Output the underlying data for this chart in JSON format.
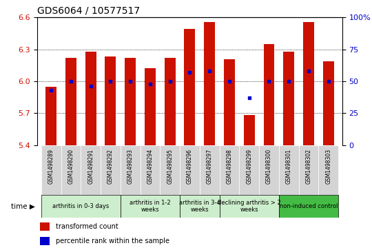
{
  "title": "GDS6064 / 10577517",
  "samples": [
    "GSM1498289",
    "GSM1498290",
    "GSM1498291",
    "GSM1498292",
    "GSM1498293",
    "GSM1498294",
    "GSM1498295",
    "GSM1498296",
    "GSM1498297",
    "GSM1498298",
    "GSM1498299",
    "GSM1498300",
    "GSM1498301",
    "GSM1498302",
    "GSM1498303"
  ],
  "transformed_count": [
    5.95,
    6.22,
    6.28,
    6.23,
    6.22,
    6.12,
    6.22,
    6.49,
    6.56,
    6.21,
    5.68,
    6.35,
    6.28,
    6.56,
    6.19
  ],
  "percentile_rank": [
    43,
    50,
    46,
    50,
    50,
    48,
    50,
    57,
    58,
    50,
    37,
    50,
    50,
    58,
    50
  ],
  "ylim_left": [
    5.4,
    6.6
  ],
  "ylim_right": [
    0,
    100
  ],
  "yticks_left": [
    5.4,
    5.7,
    6.0,
    6.3,
    6.6
  ],
  "yticks_right": [
    0,
    25,
    50,
    75,
    100
  ],
  "bar_color": "#cc1100",
  "dot_color": "#0000cc",
  "bar_bottom": 5.4,
  "groups": [
    {
      "label": "arthritis in 0-3 days",
      "start": 0,
      "end": 4,
      "color": "#cceecc"
    },
    {
      "label": "arthritis in 1-2\nweeks",
      "start": 4,
      "end": 7,
      "color": "#cceecc"
    },
    {
      "label": "arthritis in 3-4\nweeks",
      "start": 7,
      "end": 9,
      "color": "#cceecc"
    },
    {
      "label": "declining arthritis > 2\nweeks",
      "start": 9,
      "end": 12,
      "color": "#cceecc"
    },
    {
      "label": "non-induced control",
      "start": 12,
      "end": 15,
      "color": "#44bb44"
    }
  ],
  "sample_bg_color": "#d4d4d4",
  "bg_color": "#ffffff",
  "legend_items": [
    {
      "label": "transformed count",
      "color": "#cc1100"
    },
    {
      "label": "percentile rank within the sample",
      "color": "#0000cc"
    }
  ]
}
